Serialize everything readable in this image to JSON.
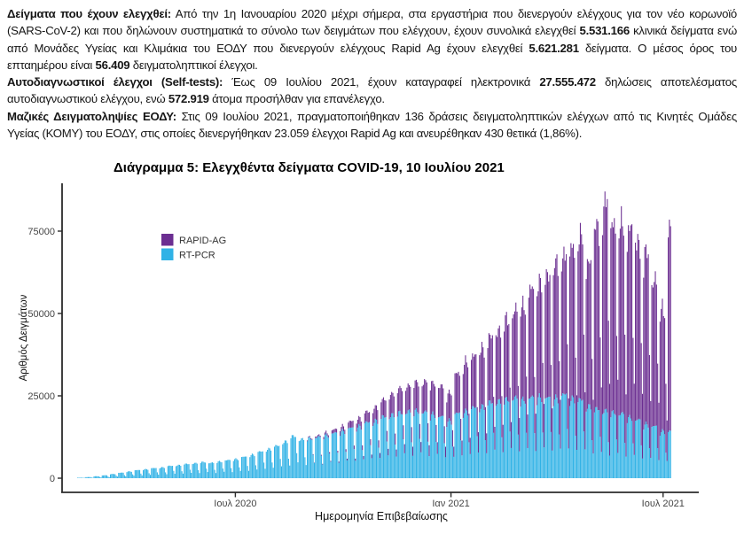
{
  "report": {
    "paragraphs": [
      {
        "segments": [
          {
            "text": "Δείγματα που έχουν ελεγχθεί:",
            "bold": true
          },
          {
            "text": " Από την 1η Ιανουαρίου 2020 μέχρι σήμερα, στα εργαστήρια που διενεργούν ελέγχους για τον νέο κορωνοϊό (SARS-CoV-2) και που δηλώνουν συστηματικά το σύνολο των δειγμάτων που ελέγχουν, έχουν συνολικά ελεγχθεί ",
            "bold": false
          },
          {
            "text": "5.531.166",
            "bold": true
          },
          {
            "text": " κλινικά δείγματα ενώ από Μονάδες Υγείας και Κλιμάκια του ΕΟΔΥ που διενεργούν ελέγχους Rapid Ag έχουν ελεγχθεί ",
            "bold": false
          },
          {
            "text": "5.621.281",
            "bold": true
          },
          {
            "text": " δείγματα. Ο μέσος όρος του επταημέρου είναι ",
            "bold": false
          },
          {
            "text": "56.409",
            "bold": true
          },
          {
            "text": " δειγματοληπτικοί έλεγχοι.",
            "bold": false
          }
        ]
      },
      {
        "segments": [
          {
            "text": "Αυτοδιαγνωστικοί έλεγχοι (Self-tests):",
            "bold": true
          },
          {
            "text": " Έως 09 Ιουλίου 2021, έχουν καταγραφεί ηλεκτρονικά ",
            "bold": false
          },
          {
            "text": "27.555.472",
            "bold": true
          },
          {
            "text": " δηλώσεις αποτελέσματος αυτοδιαγνωστικού ελέγχου, ενώ ",
            "bold": false
          },
          {
            "text": "572.919",
            "bold": true
          },
          {
            "text": " άτομα προσήλθαν για επανέλεγχο.",
            "bold": false
          }
        ]
      },
      {
        "segments": [
          {
            "text": "Μαζικές Δειγματοληψίες ΕΟΔΥ:",
            "bold": true
          },
          {
            "text": " Στις 09 Ιουλίου 2021, πραγματοποιήθηκαν 136 δράσεις δειγματοληπτικών ελέγχων από τις Κινητές Ομάδες Υγείας (ΚΟΜΥ) του ΕΟΔΥ, στις οποίες διενεργήθηκαν 23.059 έλεγχοι Rapid Ag και ανευρέθηκαν 430 θετικά (1,86%).",
            "bold": false
          }
        ]
      }
    ]
  },
  "chart_data": {
    "type": "bar",
    "stacked": true,
    "title": "Διάγραμμα 5: Ελεγχθέντα δείγματα COVID-19, 10 Ιουλίου 2021",
    "xlabel": "Ημερομηνία Επιβεβαίωσης",
    "ylabel": "Αριθμός Δειγμάτων",
    "grid": false,
    "legend_position": "inside-top-left",
    "y_ticks": [
      0,
      25000,
      50000,
      75000
    ],
    "ylim": [
      0,
      89000
    ],
    "frequency": "daily",
    "start_date": "2020-02-17",
    "end_date": "2021-07-07",
    "x_ticks": [
      {
        "label": "Ιουλ 2020",
        "day_index": 135
      },
      {
        "label": "Ιαν 2021",
        "day_index": 319
      },
      {
        "label": "Ιουλ 2021",
        "day_index": 500
      }
    ],
    "series": [
      {
        "name": "RAPID-AG",
        "color": "#6B2E91",
        "stack_position": "top"
      },
      {
        "name": "RT-PCR",
        "color": "#30B2E6",
        "stack_position": "bottom"
      }
    ],
    "axis_color": "#2b2b2b",
    "tick_label_color": "#454545",
    "rt_pcr_weekly_weekday_peak": [
      150,
      350,
      600,
      900,
      1300,
      1700,
      2100,
      2500,
      2800,
      3100,
      3400,
      3800,
      4100,
      4400,
      4700,
      5000,
      4800,
      5200,
      5600,
      6000,
      6600,
      7400,
      8200,
      9200,
      10000,
      11500,
      13000,
      12200,
      12400,
      12800,
      13400,
      14000,
      14800,
      15500,
      16300,
      17200,
      18000,
      19000,
      19800,
      20300,
      20800,
      21000,
      20500,
      20000,
      19000,
      18000,
      20000,
      21000,
      21800,
      22500,
      23500,
      24000,
      24500,
      25000,
      24500,
      25000,
      25500,
      24800,
      25200,
      25800,
      25000,
      24200,
      22500,
      21500,
      21000,
      20500,
      20000,
      19000,
      18000,
      17000,
      16000,
      14800,
      14500
    ],
    "rapid_ag_weekly_weekday_peak": [
      0,
      0,
      0,
      0,
      0,
      0,
      0,
      0,
      0,
      0,
      0,
      0,
      0,
      0,
      0,
      0,
      0,
      0,
      0,
      0,
      0,
      0,
      0,
      0,
      0,
      0,
      0,
      0,
      300,
      500,
      800,
      1100,
      1500,
      2000,
      2600,
      3300,
      4200,
      5500,
      6500,
      7500,
      8200,
      8800,
      9400,
      10000,
      9200,
      8800,
      12500,
      15000,
      16500,
      18000,
      20000,
      22500,
      24500,
      27000,
      30000,
      33000,
      36000,
      38500,
      41000,
      44000,
      47000,
      50000,
      46000,
      56000,
      64000,
      60000,
      58000,
      59000,
      56000,
      52000,
      46000,
      38000,
      63500
    ],
    "weekday_profile": [
      0.92,
      0.97,
      1.0,
      0.98,
      0.95,
      0.55,
      0.35
    ],
    "days_in_last_week": 3
  }
}
